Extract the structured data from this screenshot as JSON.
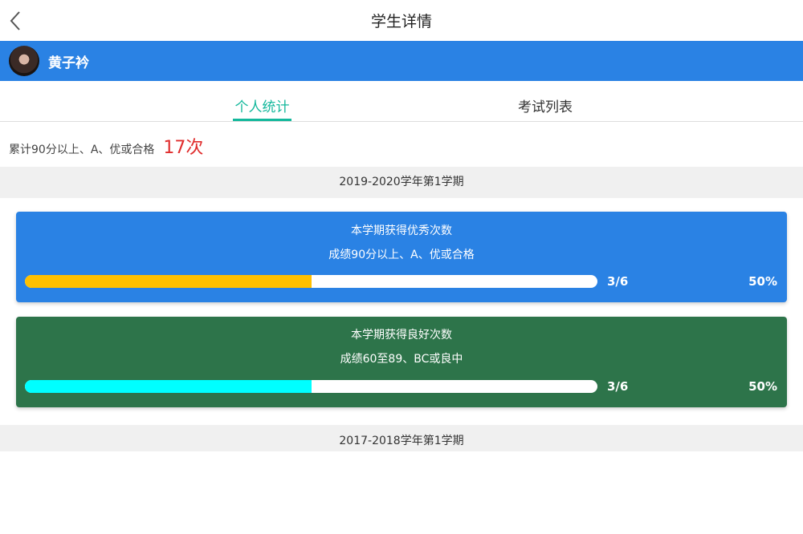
{
  "header": {
    "title": "学生详情",
    "back_icon": "chevron-left-icon"
  },
  "user": {
    "name": "黄子衿"
  },
  "tabs": [
    {
      "label": "个人统计",
      "active": true
    },
    {
      "label": "考试列表",
      "active": false
    }
  ],
  "summary": {
    "label": "累计90分以上、A、优或合格",
    "count": "17次"
  },
  "colors": {
    "primary": "#2a82e4",
    "accent": "#14b89c",
    "count": "#e02d2d",
    "good_card": "#2d744a",
    "excellent_fill": "#ffc000",
    "good_fill": "#00ffff"
  },
  "semesters": [
    {
      "title": "2019-2020学年第1学期",
      "cards": [
        {
          "title": "本学期获得优秀次数",
          "subtitle": "成绩90分以上、A、优或合格",
          "fraction": "3/6",
          "percent": "50%",
          "progress": 0.5
        },
        {
          "title": "本学期获得良好次数",
          "subtitle": "成绩60至89、BC或良中",
          "fraction": "3/6",
          "percent": "50%",
          "progress": 0.5
        }
      ]
    },
    {
      "title": "2017-2018学年第1学期"
    }
  ]
}
